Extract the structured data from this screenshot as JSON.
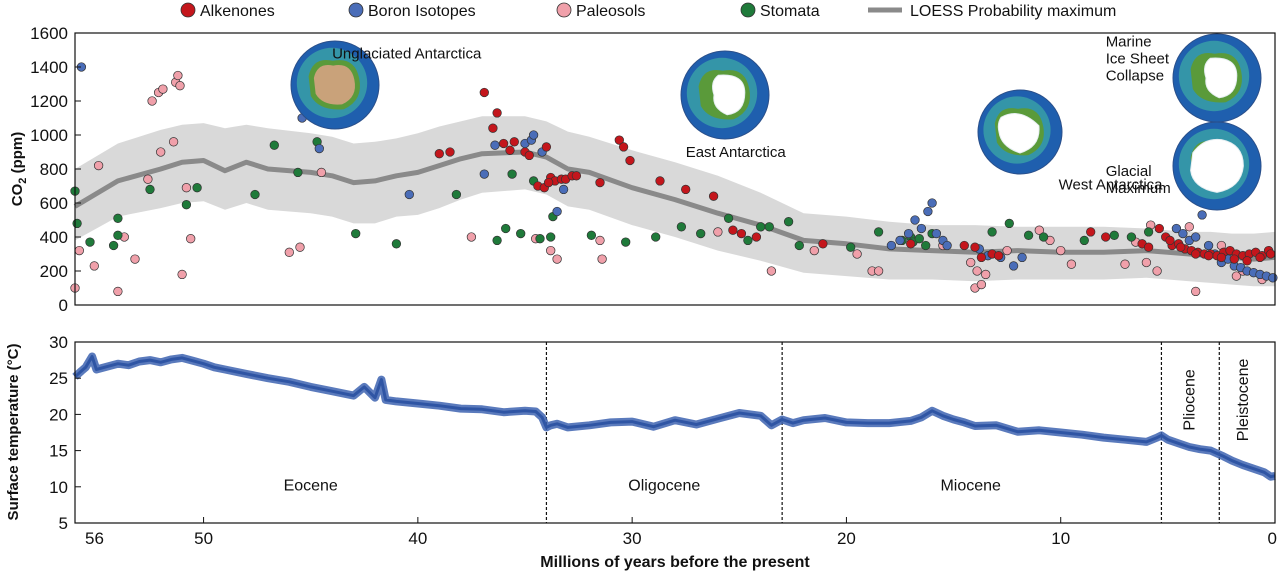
{
  "chart_data": [
    {
      "type": "scatter",
      "panel": "top",
      "ylabel_main": "CO",
      "ylabel_sub": "2",
      "ylabel_unit": " (ppm)",
      "xlim": [
        56,
        0
      ],
      "ylim": [
        0,
        1600
      ],
      "yticks": [
        0,
        200,
        400,
        600,
        800,
        1000,
        1200,
        1400,
        1600
      ],
      "legend": [
        {
          "name": "Alkenones",
          "color": "#c4161c",
          "marker": "dot"
        },
        {
          "name": "Boron Isotopes",
          "color": "#4a6db8",
          "marker": "dot"
        },
        {
          "name": "Paleosols",
          "color": "#f0a0aa",
          "marker": "dot"
        },
        {
          "name": "Stomata",
          "color": "#1f7a3a",
          "marker": "dot"
        },
        {
          "name": "LOESS Probability maximum",
          "color": "#8a8a8a",
          "marker": "line"
        }
      ],
      "loess": {
        "x": [
          56,
          54,
          52,
          51,
          50,
          49,
          48,
          47,
          45,
          44,
          43,
          42,
          41,
          40,
          39,
          38,
          37,
          35,
          34,
          33,
          32,
          30,
          28,
          26,
          24,
          22,
          20,
          18,
          16,
          14,
          12,
          10,
          8,
          6,
          5,
          4,
          3,
          2,
          1,
          0
        ],
        "y": [
          580,
          730,
          800,
          840,
          850,
          790,
          840,
          800,
          780,
          760,
          720,
          730,
          760,
          780,
          820,
          860,
          890,
          900,
          870,
          800,
          780,
          690,
          620,
          540,
          470,
          380,
          360,
          330,
          320,
          310,
          320,
          310,
          310,
          320,
          310,
          300,
          290,
          280,
          270,
          280
        ],
        "band_upper": [
          800,
          950,
          1030,
          1060,
          1070,
          1040,
          1060,
          1040,
          1010,
          990,
          950,
          960,
          980,
          1010,
          1050,
          1080,
          1110,
          1110,
          1080,
          1020,
          990,
          910,
          840,
          760,
          660,
          540,
          520,
          490,
          470,
          470,
          460,
          460,
          460,
          450,
          440,
          430,
          430,
          420,
          420,
          430
        ],
        "band_lower": [
          380,
          520,
          570,
          600,
          610,
          560,
          600,
          560,
          540,
          520,
          480,
          480,
          520,
          530,
          570,
          620,
          660,
          680,
          650,
          580,
          560,
          470,
          400,
          320,
          260,
          190,
          170,
          150,
          150,
          140,
          150,
          150,
          150,
          160,
          150,
          140,
          130,
          120,
          110,
          110
        ]
      },
      "series": [
        {
          "name": "Alkenones",
          "x": [
            36.9,
            36.3,
            36,
            35.5,
            35,
            34.8,
            34.4,
            34.1,
            33.8,
            33.6,
            33.3,
            33.1,
            32.8,
            32.6,
            31.5,
            30.6,
            30.4,
            30.1,
            28.7,
            27.5,
            26.2,
            25.3,
            24.9,
            24.2,
            21.1,
            17,
            14.5,
            14,
            13.7,
            13.2,
            12.9,
            8.6,
            7.9,
            6.2,
            5.9,
            5.4,
            5.1,
            4.8,
            4.5,
            4.2,
            3.9,
            3.6,
            3.3,
            3,
            2.7,
            2.4,
            2.1,
            1.8,
            1.5,
            1.2,
            0.9,
            0.6,
            0.3,
            4.9,
            4.4,
            3.7,
            3.1,
            2.5,
            1.9,
            1.3,
            0.7,
            0.2,
            36.5,
            38.5,
            39,
            35.7,
            34,
            33.9
          ],
          "y": [
            1250,
            1130,
            950,
            960,
            900,
            880,
            700,
            690,
            750,
            730,
            740,
            740,
            760,
            760,
            720,
            970,
            930,
            850,
            730,
            680,
            640,
            440,
            420,
            400,
            360,
            360,
            350,
            340,
            280,
            300,
            290,
            430,
            400,
            360,
            340,
            450,
            400,
            350,
            360,
            330,
            320,
            310,
            300,
            300,
            290,
            310,
            320,
            300,
            290,
            300,
            310,
            290,
            320,
            380,
            340,
            300,
            290,
            280,
            270,
            260,
            280,
            300,
            1040,
            900,
            890,
            910,
            930,
            720
          ]
        },
        {
          "name": "Boron Isotopes",
          "x": [
            55.7,
            45.4,
            44.6,
            40.4,
            36.9,
            36.4,
            35,
            34.7,
            34.6,
            34.2,
            33.5,
            33.2,
            17.9,
            17.5,
            17.1,
            16.8,
            16.5,
            16.2,
            16,
            15.8,
            15.5,
            15.3,
            13.8,
            13.4,
            12.8,
            12.2,
            11.8,
            4.6,
            4.3,
            4,
            3.7,
            3.4,
            3.1,
            2.8,
            2.5,
            2.2,
            1.9,
            1.6,
            1.3,
            1,
            0.7,
            0.4,
            0.1
          ],
          "y": [
            1400,
            1100,
            920,
            650,
            770,
            940,
            950,
            970,
            1000,
            900,
            550,
            680,
            350,
            380,
            420,
            500,
            450,
            550,
            600,
            420,
            380,
            350,
            330,
            290,
            280,
            230,
            280,
            450,
            420,
            380,
            400,
            530,
            350,
            300,
            250,
            270,
            230,
            220,
            200,
            190,
            180,
            170,
            160
          ]
        },
        {
          "name": "Paleosols",
          "x": [
            56,
            55.8,
            55.1,
            54.9,
            54,
            53.7,
            53.2,
            52.6,
            52.4,
            52.1,
            52,
            51.9,
            51.4,
            51.3,
            51.2,
            51.1,
            51,
            50.8,
            50.6,
            46,
            45.5,
            44.5,
            37.5,
            34.5,
            33.8,
            33.5,
            31.5,
            31.4,
            26,
            23.5,
            21.5,
            19.5,
            18.8,
            18.5,
            15.5,
            14.2,
            14,
            13.9,
            13.7,
            13.5,
            12.5,
            11,
            10.5,
            10,
            9.5,
            7,
            6.5,
            6,
            5.8,
            5.5,
            4,
            3.7,
            2.5,
            1.8,
            1.5,
            0.6
          ],
          "y": [
            100,
            320,
            230,
            820,
            80,
            400,
            270,
            740,
            1200,
            1250,
            900,
            1270,
            960,
            1310,
            1350,
            1290,
            180,
            690,
            390,
            310,
            340,
            780,
            400,
            390,
            320,
            270,
            380,
            270,
            430,
            200,
            320,
            300,
            200,
            200,
            350,
            250,
            100,
            200,
            120,
            180,
            320,
            440,
            380,
            320,
            240,
            240,
            370,
            250,
            470,
            200,
            460,
            80,
            350,
            170,
            200,
            150
          ]
        },
        {
          "name": "Stomata",
          "x": [
            56,
            55.9,
            55.3,
            54.2,
            54,
            54,
            52.5,
            50.8,
            50.3,
            47.6,
            46.7,
            45.6,
            44.7,
            42.9,
            41,
            38.2,
            36.3,
            35.9,
            35.6,
            35.2,
            34.6,
            34.3,
            33.8,
            33.7,
            31.9,
            30.3,
            28.9,
            27.7,
            26.8,
            25.5,
            24.6,
            24,
            23.6,
            22.7,
            22.2,
            19.8,
            18.5,
            17.4,
            17,
            16.9,
            16.6,
            16.3,
            16,
            13.2,
            12.4,
            11.5,
            10.8,
            8.9,
            7.5,
            6.7,
            5.9
          ],
          "y": [
            670,
            480,
            370,
            350,
            510,
            410,
            680,
            590,
            690,
            650,
            940,
            780,
            960,
            420,
            360,
            650,
            380,
            450,
            770,
            420,
            730,
            390,
            400,
            520,
            410,
            370,
            400,
            460,
            420,
            510,
            380,
            460,
            460,
            490,
            350,
            340,
            430,
            380,
            400,
            370,
            390,
            350,
            420,
            430,
            480,
            410,
            400,
            380,
            410,
            400,
            430
          ]
        }
      ],
      "annotations": [
        {
          "text": "Unglaciated Antarctica",
          "x": 44,
          "y": 1450,
          "globe": "unglaciated"
        },
        {
          "text": "East Antarctica",
          "x": 27.5,
          "y": 870,
          "globe": "east"
        },
        {
          "text": "West Antarctica",
          "x": 10.1,
          "y": 680,
          "globe": "west"
        },
        {
          "text": "Marine",
          "x": 7.9,
          "y": 1520,
          "globe": "marine"
        },
        {
          "text": "Ice Sheet",
          "x": 7.9,
          "y": 1420,
          "globe": "marine"
        },
        {
          "text": "Collapse",
          "x": 7.9,
          "y": 1320,
          "globe": "marine"
        },
        {
          "text": "Glacial",
          "x": 7.9,
          "y": 760,
          "globe": "glacial"
        },
        {
          "text": "Maximum",
          "x": 7.9,
          "y": 660,
          "globe": "glacial"
        }
      ]
    },
    {
      "type": "line",
      "panel": "bottom",
      "ylabel": "Surface temperature (°C)",
      "xlabel": "Millions of years before the present",
      "xlim": [
        56,
        0
      ],
      "ylim": [
        5,
        30
      ],
      "yticks": [
        5,
        10,
        15,
        20,
        25,
        30
      ],
      "xticks": [
        56,
        50,
        40,
        30,
        20,
        10,
        0
      ],
      "series": [
        {
          "name": "Surface temperature",
          "color": "#3d63b0",
          "x": [
            56,
            55.7,
            55.5,
            55.2,
            55,
            54.5,
            54,
            53.5,
            53,
            52.5,
            52,
            51.5,
            51,
            50.5,
            50,
            49.5,
            49,
            48,
            47,
            46,
            45,
            44,
            43,
            42.5,
            42,
            41.7,
            41.5,
            41,
            40,
            39,
            38,
            37,
            36,
            35,
            34.5,
            34.2,
            34,
            33.8,
            33.5,
            33,
            32,
            31,
            30,
            29,
            28,
            27,
            26,
            25,
            24,
            23.5,
            23,
            22.5,
            22,
            21,
            20,
            19,
            18,
            17,
            16.5,
            16,
            15.5,
            15,
            14.5,
            14,
            13,
            12,
            11,
            10,
            9,
            8,
            7,
            6,
            5.5,
            5.3,
            5,
            4.5,
            4,
            3.5,
            3,
            2.7,
            2.4,
            2,
            1.5,
            1,
            0.5,
            0.2,
            0
          ],
          "y": [
            25.2,
            26,
            26.5,
            28,
            26.2,
            26.6,
            27,
            26.8,
            27.3,
            27.5,
            27.2,
            27.6,
            27.8,
            27.4,
            27,
            26.5,
            26.2,
            25.6,
            25,
            24.5,
            23.8,
            23.2,
            22.6,
            23.8,
            22.3,
            24.8,
            22,
            21.8,
            21.5,
            21.2,
            20.8,
            20.7,
            20.3,
            20.5,
            20.4,
            19.6,
            18.2,
            18.5,
            18.7,
            18.2,
            18.5,
            18.9,
            19,
            18.3,
            19.2,
            18.6,
            19.4,
            20.2,
            19.8,
            18.5,
            19.3,
            18.8,
            19.2,
            19.5,
            18.9,
            18.8,
            18.8,
            19.1,
            19.6,
            20.5,
            19.8,
            19.3,
            18.9,
            18.4,
            18.5,
            17.6,
            17.8,
            17.5,
            17.2,
            16.8,
            16.5,
            16.2,
            16.8,
            17.1,
            16.5,
            16,
            15.5,
            15.2,
            15,
            14.6,
            14.2,
            13.6,
            13,
            12.5,
            12,
            11.4,
            11.5
          ]
        }
      ],
      "dividers": [
        34,
        23,
        5.3,
        2.6
      ],
      "epochs": [
        {
          "name": "Eocene",
          "x": 45,
          "y": 9.5,
          "vertical": false
        },
        {
          "name": "Oligocene",
          "x": 28.5,
          "y": 9.5,
          "vertical": false
        },
        {
          "name": "Miocene",
          "x": 14.2,
          "y": 9.5,
          "vertical": false
        },
        {
          "name": "Pliocene",
          "x": 4.0,
          "y": 22,
          "vertical": true
        },
        {
          "name": "Pleistocene",
          "x": 1.5,
          "y": 22,
          "vertical": true
        }
      ]
    }
  ]
}
